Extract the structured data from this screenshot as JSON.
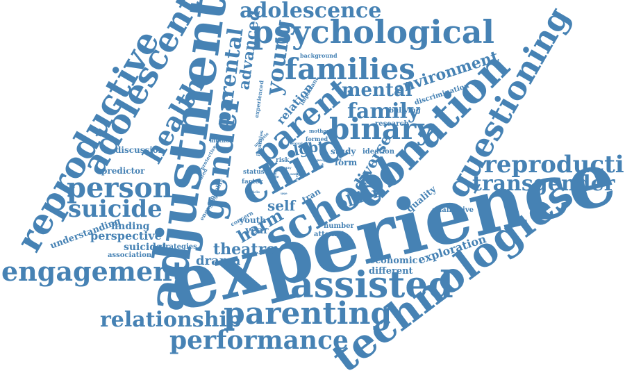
{
  "color": "#4682b4",
  "words": [
    {
      "text": "experience"
    },
    {
      "text": "adjustment"
    },
    {
      "text": "technologies"
    },
    {
      "text": "donation"
    },
    {
      "text": "school"
    },
    {
      "text": "child"
    },
    {
      "text": "reproductive"
    },
    {
      "text": "gender"
    },
    {
      "text": "adolescent"
    },
    {
      "text": "assisted"
    },
    {
      "text": "parenting"
    },
    {
      "text": "questioning"
    },
    {
      "text": "psychological"
    },
    {
      "text": "parent"
    },
    {
      "text": "binary"
    },
    {
      "text": "families"
    },
    {
      "text": "engagement"
    },
    {
      "text": "person"
    },
    {
      "text": "performance"
    },
    {
      "text": "reproduction"
    },
    {
      "text": "health"
    },
    {
      "text": "suicide"
    },
    {
      "text": "relationship"
    },
    {
      "text": "transgender"
    },
    {
      "text": "adolescence"
    },
    {
      "text": "young"
    },
    {
      "text": "parental"
    },
    {
      "text": "family"
    },
    {
      "text": "mental"
    },
    {
      "text": "environment"
    },
    {
      "text": "advanced"
    },
    {
      "text": "harm"
    },
    {
      "text": "diverse"
    },
    {
      "text": "older"
    },
    {
      "text": "theatre"
    },
    {
      "text": "drama"
    },
    {
      "text": "self"
    },
    {
      "text": "lgbt"
    },
    {
      "text": "perspective"
    },
    {
      "text": "finding"
    },
    {
      "text": "suicidal"
    },
    {
      "text": "year"
    },
    {
      "text": "youth"
    },
    {
      "text": "exploration"
    },
    {
      "text": "economic"
    },
    {
      "text": "different"
    },
    {
      "text": "relation"
    },
    {
      "text": "quality"
    },
    {
      "text": "understanding"
    },
    {
      "text": "predictor"
    },
    {
      "text": "discussion"
    },
    {
      "text": "association"
    },
    {
      "text": "strategies"
    },
    {
      "text": "tran"
    },
    {
      "text": "form"
    },
    {
      "text": "study"
    },
    {
      "text": "number"
    },
    {
      "text": "attempt"
    },
    {
      "text": "qualitative"
    },
    {
      "text": "research"
    },
    {
      "text": "bullying"
    },
    {
      "text": "discrimination"
    },
    {
      "text": "ideation"
    },
    {
      "text": "background"
    },
    {
      "text": "important"
    },
    {
      "text": "experienced"
    },
    {
      "text": "concern"
    },
    {
      "text": "status"
    },
    {
      "text": "risk"
    },
    {
      "text": "factor"
    },
    {
      "text": "method"
    },
    {
      "text": "engaging"
    },
    {
      "text": "mortality"
    },
    {
      "text": "created"
    },
    {
      "text": "protective"
    },
    {
      "text": "mother"
    },
    {
      "text": "formed"
    },
    {
      "text": "positive"
    },
    {
      "text": "younger"
    },
    {
      "text": "poorer"
    },
    {
      "text": "identities"
    },
    {
      "text": "analysis"
    },
    {
      "text": "sample"
    },
    {
      "text": "article"
    },
    {
      "text": "gay"
    },
    {
      "text": "target"
    },
    {
      "text": "survey"
    },
    {
      "text": "reducing"
    },
    {
      "text": "people"
    },
    {
      "text": "sexual"
    },
    {
      "text": "age"
    },
    {
      "text": "use"
    }
  ]
}
